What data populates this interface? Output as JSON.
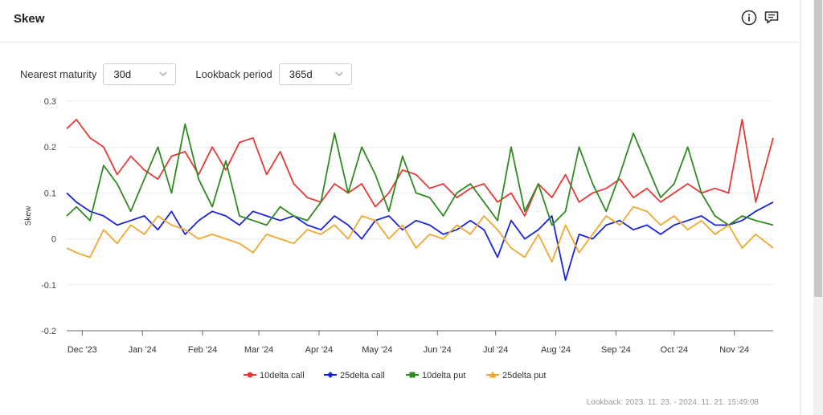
{
  "header": {
    "title": "Skew"
  },
  "controls": {
    "maturity_label": "Nearest maturity",
    "maturity_value": "30d",
    "lookback_label": "Lookback period",
    "lookback_value": "365d"
  },
  "footer": {
    "lookback_text": "Lookback: 2023. 11. 23. - 2024. 11. 21. 15:49:08"
  },
  "chart_data": {
    "type": "line",
    "ylabel": "Skew",
    "ylim": [
      -0.2,
      0.3
    ],
    "yticks": [
      "0.3",
      "0.2",
      "0.1",
      "0",
      "-0.1",
      "-0.2"
    ],
    "yticks_values": [
      0.3,
      0.2,
      0.1,
      0,
      -0.1,
      -0.2
    ],
    "xlim": [
      "2023-11-23",
      "2024-11-21"
    ],
    "xticks": [
      "Dec '23",
      "Jan '24",
      "Feb '24",
      "Mar '24",
      "Apr '24",
      "May '24",
      "Jun '24",
      "Jul '24",
      "Aug '24",
      "Sep '24",
      "Oct '24",
      "Nov '24"
    ],
    "xticks_dates": [
      "2023-12-01",
      "2024-01-01",
      "2024-02-01",
      "2024-03-01",
      "2024-04-01",
      "2024-05-01",
      "2024-06-01",
      "2024-07-01",
      "2024-08-01",
      "2024-09-01",
      "2024-10-01",
      "2024-11-01"
    ],
    "grid": "horizontal",
    "legend_position": "bottom",
    "series": [
      {
        "name": "10delta call",
        "color": "#e53935",
        "x": [
          "2023-11-23",
          "2023-11-28",
          "2023-12-05",
          "2023-12-12",
          "2023-12-19",
          "2023-12-26",
          "2024-01-02",
          "2024-01-09",
          "2024-01-16",
          "2024-01-23",
          "2024-01-30",
          "2024-02-06",
          "2024-02-13",
          "2024-02-20",
          "2024-02-27",
          "2024-03-05",
          "2024-03-12",
          "2024-03-19",
          "2024-03-26",
          "2024-04-02",
          "2024-04-09",
          "2024-04-16",
          "2024-04-23",
          "2024-04-30",
          "2024-05-07",
          "2024-05-14",
          "2024-05-21",
          "2024-05-28",
          "2024-06-04",
          "2024-06-11",
          "2024-06-18",
          "2024-06-25",
          "2024-07-02",
          "2024-07-09",
          "2024-07-16",
          "2024-07-23",
          "2024-07-30",
          "2024-08-06",
          "2024-08-13",
          "2024-08-20",
          "2024-08-27",
          "2024-09-03",
          "2024-09-10",
          "2024-09-17",
          "2024-09-24",
          "2024-10-01",
          "2024-10-08",
          "2024-10-15",
          "2024-10-22",
          "2024-10-29",
          "2024-11-05",
          "2024-11-12",
          "2024-11-21"
        ],
        "y": [
          0.24,
          0.26,
          0.22,
          0.2,
          0.14,
          0.18,
          0.15,
          0.13,
          0.18,
          0.19,
          0.14,
          0.2,
          0.15,
          0.21,
          0.22,
          0.14,
          0.19,
          0.12,
          0.09,
          0.08,
          0.12,
          0.1,
          0.12,
          0.07,
          0.1,
          0.15,
          0.14,
          0.11,
          0.12,
          0.09,
          0.11,
          0.12,
          0.08,
          0.1,
          0.05,
          0.12,
          0.09,
          0.14,
          0.08,
          0.1,
          0.11,
          0.13,
          0.09,
          0.11,
          0.08,
          0.1,
          0.12,
          0.1,
          0.11,
          0.1,
          0.26,
          0.08,
          0.22
        ]
      },
      {
        "name": "25delta call",
        "color": "#1a24d6",
        "x": [
          "2023-11-23",
          "2023-11-28",
          "2023-12-05",
          "2023-12-12",
          "2023-12-19",
          "2023-12-26",
          "2024-01-02",
          "2024-01-09",
          "2024-01-16",
          "2024-01-23",
          "2024-01-30",
          "2024-02-06",
          "2024-02-13",
          "2024-02-20",
          "2024-02-27",
          "2024-03-05",
          "2024-03-12",
          "2024-03-19",
          "2024-03-26",
          "2024-04-02",
          "2024-04-09",
          "2024-04-16",
          "2024-04-23",
          "2024-04-30",
          "2024-05-07",
          "2024-05-14",
          "2024-05-21",
          "2024-05-28",
          "2024-06-04",
          "2024-06-11",
          "2024-06-18",
          "2024-06-25",
          "2024-07-02",
          "2024-07-09",
          "2024-07-16",
          "2024-07-23",
          "2024-07-30",
          "2024-08-06",
          "2024-08-13",
          "2024-08-20",
          "2024-08-27",
          "2024-09-03",
          "2024-09-10",
          "2024-09-17",
          "2024-09-24",
          "2024-10-01",
          "2024-10-08",
          "2024-10-15",
          "2024-10-22",
          "2024-10-29",
          "2024-11-05",
          "2024-11-12",
          "2024-11-21"
        ],
        "y": [
          0.1,
          0.08,
          0.06,
          0.05,
          0.03,
          0.04,
          0.05,
          0.02,
          0.06,
          0.01,
          0.04,
          0.06,
          0.05,
          0.03,
          0.06,
          0.05,
          0.04,
          0.05,
          0.03,
          0.02,
          0.05,
          0.03,
          0.0,
          0.04,
          0.05,
          0.02,
          0.04,
          0.03,
          0.01,
          0.02,
          0.04,
          0.02,
          -0.04,
          0.04,
          0.0,
          0.02,
          0.05,
          -0.09,
          0.01,
          0.0,
          0.03,
          0.04,
          0.02,
          0.03,
          0.01,
          0.03,
          0.04,
          0.05,
          0.03,
          0.03,
          0.04,
          0.06,
          0.08
        ]
      },
      {
        "name": "10delta put",
        "color": "#2e8b1e",
        "x": [
          "2023-11-23",
          "2023-11-28",
          "2023-12-05",
          "2023-12-12",
          "2023-12-19",
          "2023-12-26",
          "2024-01-02",
          "2024-01-09",
          "2024-01-16",
          "2024-01-23",
          "2024-01-30",
          "2024-02-06",
          "2024-02-13",
          "2024-02-20",
          "2024-02-27",
          "2024-03-05",
          "2024-03-12",
          "2024-03-19",
          "2024-03-26",
          "2024-04-02",
          "2024-04-09",
          "2024-04-16",
          "2024-04-23",
          "2024-04-30",
          "2024-05-07",
          "2024-05-14",
          "2024-05-21",
          "2024-05-28",
          "2024-06-04",
          "2024-06-11",
          "2024-06-18",
          "2024-06-25",
          "2024-07-02",
          "2024-07-09",
          "2024-07-16",
          "2024-07-23",
          "2024-07-30",
          "2024-08-06",
          "2024-08-13",
          "2024-08-20",
          "2024-08-27",
          "2024-09-03",
          "2024-09-10",
          "2024-09-17",
          "2024-09-24",
          "2024-10-01",
          "2024-10-08",
          "2024-10-15",
          "2024-10-22",
          "2024-10-29",
          "2024-11-05",
          "2024-11-12",
          "2024-11-21"
        ],
        "y": [
          0.05,
          0.07,
          0.04,
          0.16,
          0.12,
          0.06,
          0.13,
          0.2,
          0.1,
          0.25,
          0.13,
          0.07,
          0.17,
          0.05,
          0.04,
          0.03,
          0.07,
          0.05,
          0.04,
          0.08,
          0.23,
          0.1,
          0.2,
          0.14,
          0.06,
          0.18,
          0.1,
          0.09,
          0.05,
          0.1,
          0.12,
          0.08,
          0.04,
          0.2,
          0.06,
          0.12,
          0.03,
          0.06,
          0.2,
          0.12,
          0.06,
          0.14,
          0.23,
          0.16,
          0.09,
          0.12,
          0.2,
          0.1,
          0.05,
          0.03,
          0.05,
          0.04,
          0.03
        ]
      },
      {
        "name": "25delta put",
        "color": "#f0a830",
        "x": [
          "2023-11-23",
          "2023-11-28",
          "2023-12-05",
          "2023-12-12",
          "2023-12-19",
          "2023-12-26",
          "2024-01-02",
          "2024-01-09",
          "2024-01-16",
          "2024-01-23",
          "2024-01-30",
          "2024-02-06",
          "2024-02-13",
          "2024-02-20",
          "2024-02-27",
          "2024-03-05",
          "2024-03-12",
          "2024-03-19",
          "2024-03-26",
          "2024-04-02",
          "2024-04-09",
          "2024-04-16",
          "2024-04-23",
          "2024-04-30",
          "2024-05-07",
          "2024-05-14",
          "2024-05-21",
          "2024-05-28",
          "2024-06-04",
          "2024-06-11",
          "2024-06-18",
          "2024-06-25",
          "2024-07-02",
          "2024-07-09",
          "2024-07-16",
          "2024-07-23",
          "2024-07-30",
          "2024-08-06",
          "2024-08-13",
          "2024-08-20",
          "2024-08-27",
          "2024-09-03",
          "2024-09-10",
          "2024-09-17",
          "2024-09-24",
          "2024-10-01",
          "2024-10-08",
          "2024-10-15",
          "2024-10-22",
          "2024-10-29",
          "2024-11-05",
          "2024-11-12",
          "2024-11-21"
        ],
        "y": [
          -0.02,
          -0.03,
          -0.04,
          0.02,
          -0.01,
          0.03,
          0.01,
          0.05,
          0.03,
          0.02,
          0.0,
          0.01,
          0.0,
          -0.01,
          -0.03,
          0.01,
          0.0,
          -0.01,
          0.02,
          0.01,
          0.03,
          0.0,
          0.05,
          0.04,
          0.0,
          0.03,
          -0.02,
          0.01,
          0.0,
          0.03,
          0.01,
          0.05,
          0.02,
          -0.02,
          -0.04,
          0.01,
          -0.05,
          0.03,
          -0.03,
          0.01,
          0.05,
          0.03,
          0.07,
          0.06,
          0.03,
          0.05,
          0.02,
          0.04,
          0.01,
          0.03,
          -0.02,
          0.01,
          -0.02
        ]
      }
    ]
  }
}
